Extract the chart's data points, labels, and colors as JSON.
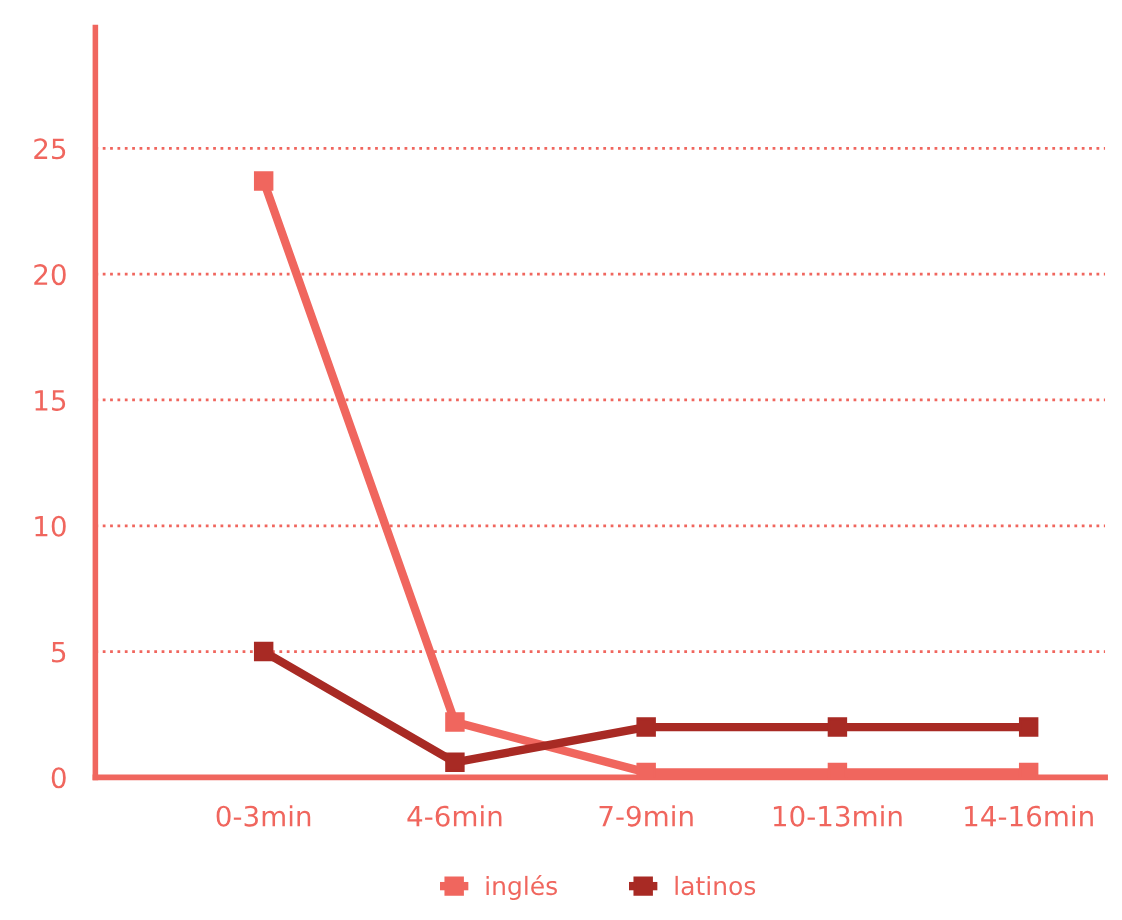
{
  "chart_data": {
    "type": "line",
    "categories": [
      "0-3min",
      "4-6min",
      "7-9min",
      "10-13min",
      "14-16min"
    ],
    "series": [
      {
        "name": "inglés",
        "color": "#f0665e",
        "values": [
          23.7,
          2.2,
          0.2,
          0.2,
          0.2
        ]
      },
      {
        "name": "latinos",
        "color": "#a82a24",
        "values": [
          5.0,
          0.6,
          2.0,
          2.0,
          2.0
        ]
      }
    ],
    "ylim": [
      0,
      29.8
    ],
    "yticks": [
      0,
      5,
      10,
      15,
      20,
      25
    ],
    "grid": "y",
    "legend": "bottom",
    "marker": "square",
    "line_style": "solid"
  }
}
